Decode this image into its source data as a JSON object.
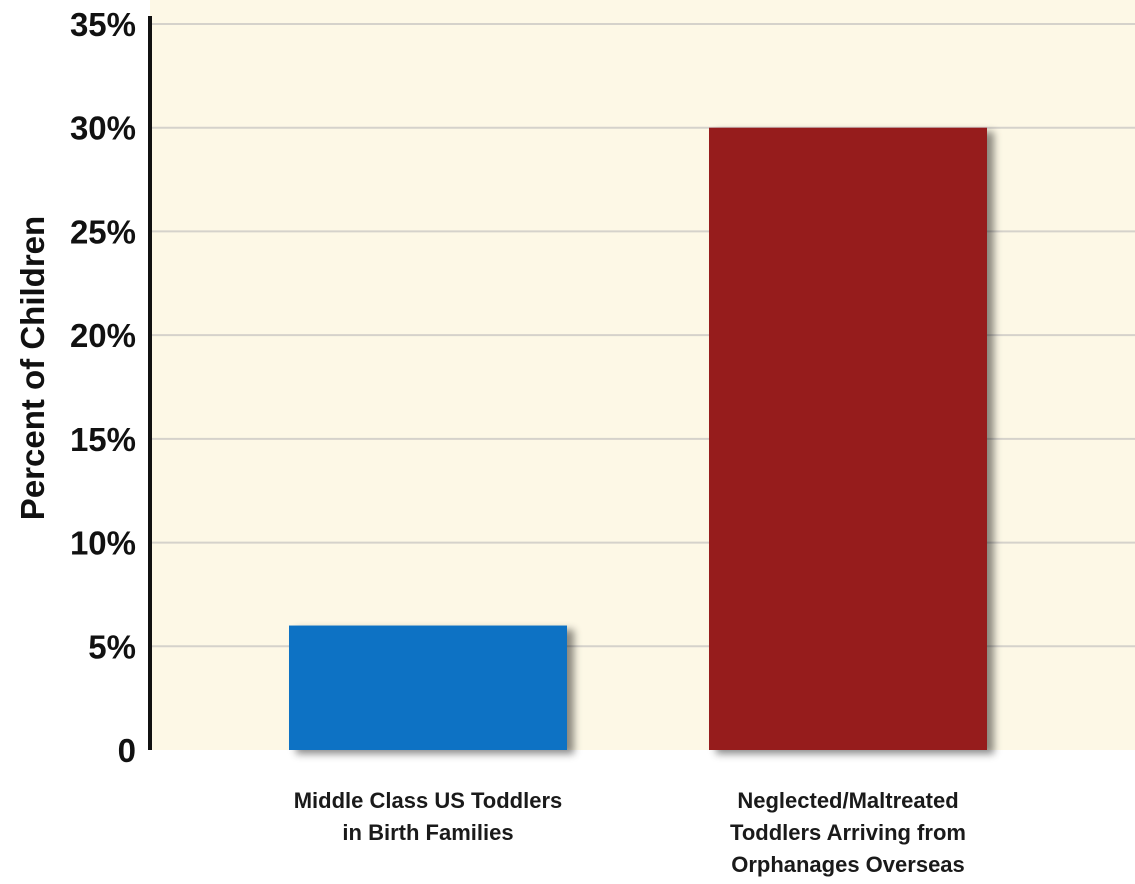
{
  "chart_data": {
    "type": "bar",
    "title": "",
    "xlabel": "",
    "ylabel": "Percent of Children",
    "ylim": [
      0,
      35
    ],
    "yticks": [
      0,
      5,
      10,
      15,
      20,
      25,
      30,
      35
    ],
    "ytick_labels": [
      "0",
      "5%",
      "10%",
      "15%",
      "20%",
      "25%",
      "30%",
      "35%"
    ],
    "categories": [
      [
        "Middle Class US Toddlers",
        "in Birth Families"
      ],
      [
        "Neglected/Maltreated",
        "Toddlers Arriving from",
        "Orphanages Overseas"
      ]
    ],
    "values": [
      6,
      30
    ],
    "colors": [
      "#0a72c4",
      "#961a1d"
    ],
    "plot_background": "#fdf8e6",
    "grid": true,
    "gridline_color": "#d5d2cb"
  }
}
